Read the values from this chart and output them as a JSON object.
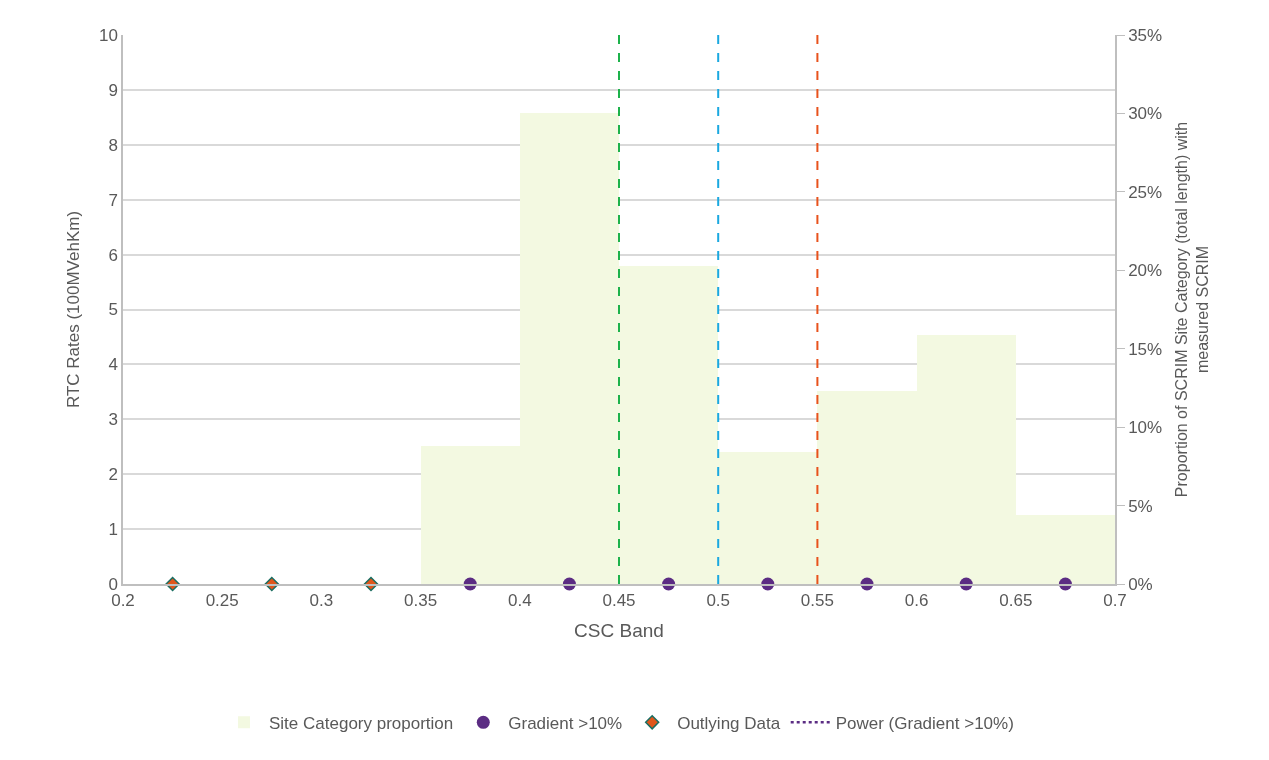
{
  "chart_data": {
    "type": "scatter",
    "xlabel": "CSC Band",
    "ylabel": "RTC Rates (100MVehKm)",
    "y2label": "Proportion of SCRIM Site Category (total length) with measured SCRIM",
    "xlim": [
      0.2,
      0.7
    ],
    "xticks": [
      0.2,
      0.25,
      0.3,
      0.35,
      0.4,
      0.45,
      0.5,
      0.55,
      0.6,
      0.65,
      0.7
    ],
    "ylim": [
      0,
      10
    ],
    "yticks": [
      0,
      1,
      2,
      3,
      4,
      5,
      6,
      7,
      8,
      9,
      10
    ],
    "y2lim": [
      0,
      35
    ],
    "y2ticks": [
      {
        "value": 0,
        "label": "0%"
      },
      {
        "value": 5,
        "label": "5%"
      },
      {
        "value": 10,
        "label": "10%"
      },
      {
        "value": 15,
        "label": "15%"
      },
      {
        "value": 20,
        "label": "20%"
      },
      {
        "value": 25,
        "label": "25%"
      },
      {
        "value": 30,
        "label": "30%"
      },
      {
        "value": 35,
        "label": "35%"
      }
    ],
    "grid": "y",
    "legend": "bottom",
    "series": [
      {
        "name": "Site Category proportion",
        "axis": "y2",
        "type": "histogram",
        "color": "#f3f9e1",
        "bins": [
          0.35,
          0.4,
          0.45,
          0.5,
          0.55,
          0.6,
          0.65,
          0.7
        ],
        "values": [
          8.8,
          30,
          20.3,
          8.4,
          12.3,
          15.9,
          4.4
        ]
      },
      {
        "name": "Gradient >10%",
        "type": "scatter",
        "marker": "circle",
        "color": "#5b2c83",
        "x": [
          0.375,
          0.425,
          0.475,
          0.525,
          0.575,
          0.625,
          0.675
        ],
        "values": [
          0,
          0,
          0,
          0,
          0,
          0,
          0
        ]
      },
      {
        "name": "Outlying Data",
        "marker": "diamond",
        "color": "#e0561b",
        "x": [
          0.225,
          0.275,
          0.325
        ],
        "values": [
          0,
          0,
          0
        ]
      },
      {
        "name": "Power (Gradient >10%)",
        "type": "line",
        "line_style": "dotted",
        "color": "#5b2c83"
      }
    ],
    "ref_lines": [
      {
        "axis": "x",
        "value": 0.45,
        "color": "#1db24b",
        "line_style": "dashed"
      },
      {
        "axis": "x",
        "value": 0.5,
        "color": "#1aa8e0",
        "line_style": "dashed"
      },
      {
        "axis": "x",
        "value": 0.55,
        "color": "#e8521c",
        "line_style": "dashed"
      }
    ]
  }
}
